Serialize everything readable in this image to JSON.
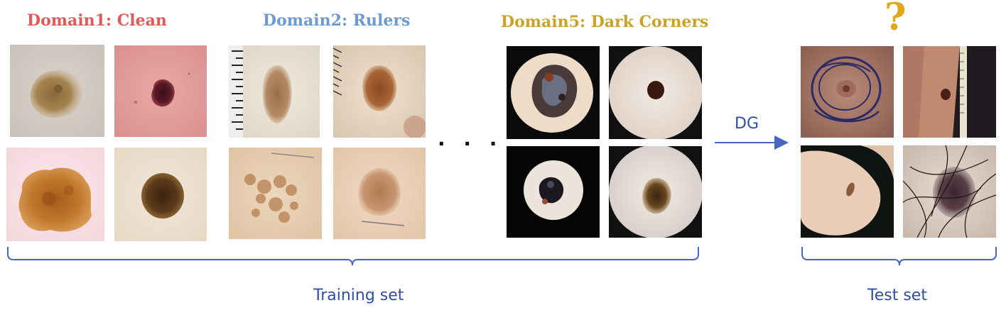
{
  "domains": [
    {
      "title": "Domain1: Clean",
      "color": "#e05a5a"
    },
    {
      "title": "Domain2: Rulers",
      "color": "#6c9bd0"
    },
    {
      "title": "Domain5: Dark Corners",
      "color": "#c9a227"
    }
  ],
  "ellipsis": "· · ·",
  "arrow_label": "DG",
  "question_mark": "?",
  "question_color": "#e0a81a",
  "training_label": "Training set",
  "test_label": "Test set",
  "line_color": "#4a66c0",
  "thumbnails": [
    {
      "name": "domain1-clean-image-1"
    },
    {
      "name": "domain1-clean-image-2"
    },
    {
      "name": "domain1-clean-image-3"
    },
    {
      "name": "domain1-clean-image-4"
    },
    {
      "name": "domain2-rulers-image-1"
    },
    {
      "name": "domain2-rulers-image-2"
    },
    {
      "name": "domain2-rulers-image-3"
    },
    {
      "name": "domain2-rulers-image-4"
    },
    {
      "name": "domain5-dark-corners-image-1"
    },
    {
      "name": "domain5-dark-corners-image-2"
    },
    {
      "name": "domain5-dark-corners-image-3"
    },
    {
      "name": "domain5-dark-corners-image-4"
    },
    {
      "name": "test-image-1"
    },
    {
      "name": "test-image-2"
    },
    {
      "name": "test-image-3"
    },
    {
      "name": "test-image-4"
    }
  ]
}
